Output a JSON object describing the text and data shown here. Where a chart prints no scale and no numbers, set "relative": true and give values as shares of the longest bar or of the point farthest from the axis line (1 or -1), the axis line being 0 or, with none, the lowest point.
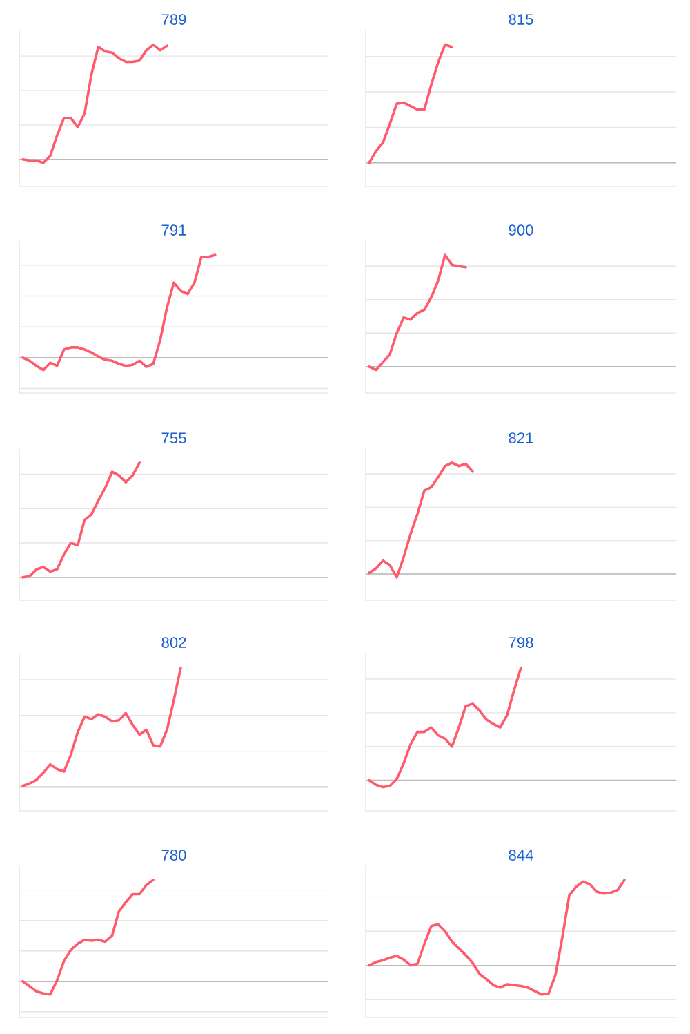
{
  "chart_data": [
    {
      "type": "line",
      "title": "789",
      "relative": true,
      "grid": "y",
      "marker": "none",
      "line_style": "solid",
      "categories": [
        null,
        null,
        null,
        null,
        null,
        null,
        null,
        null,
        null,
        null,
        null,
        null,
        null,
        null,
        null,
        null,
        null,
        null,
        null,
        null,
        null,
        null,
        null,
        null,
        null,
        null,
        null,
        null,
        null,
        null,
        null,
        null,
        null,
        null,
        null,
        null,
        null,
        null,
        null,
        null,
        null,
        null,
        null,
        null,
        null
      ],
      "series": [
        {
          "color": "#ff5a6e",
          "values": [
            0,
            -0.01,
            -0.01,
            -0.03,
            0.03,
            0.21,
            0.36,
            0.36,
            0.28,
            0.4,
            0.74,
            0.98,
            0.94,
            0.93,
            0.88,
            0.85,
            0.85,
            0.86,
            0.95,
            1.0,
            0.95,
            0.99,
            null,
            null,
            null,
            null,
            null,
            null,
            null,
            null,
            null,
            null,
            null,
            null,
            null,
            null,
            null,
            null,
            null,
            null,
            null,
            null,
            null,
            null,
            null
          ]
        }
      ]
    },
    {
      "type": "line",
      "title": "815",
      "relative": true,
      "grid": "y",
      "marker": "none",
      "line_style": "solid",
      "categories": [
        null,
        null,
        null,
        null,
        null,
        null,
        null,
        null,
        null,
        null,
        null,
        null,
        null,
        null,
        null,
        null,
        null,
        null,
        null,
        null,
        null,
        null,
        null,
        null,
        null,
        null,
        null,
        null,
        null,
        null,
        null,
        null,
        null,
        null,
        null,
        null,
        null,
        null,
        null,
        null,
        null,
        null,
        null,
        null,
        null
      ],
      "series": [
        {
          "color": "#ff5a6e",
          "values": [
            0,
            0.1,
            0.17,
            0.33,
            0.5,
            0.51,
            0.48,
            0.45,
            0.45,
            0.66,
            0.85,
            1.0,
            0.98,
            null,
            null,
            null,
            null,
            null,
            null,
            null,
            null,
            null,
            null,
            null,
            null,
            null,
            null,
            null,
            null,
            null,
            null,
            null,
            null,
            null,
            null,
            null,
            null,
            null,
            null,
            null,
            null,
            null,
            null,
            null,
            null
          ]
        }
      ]
    },
    {
      "type": "line",
      "title": "791",
      "relative": true,
      "grid": "y",
      "marker": "none",
      "line_style": "solid",
      "categories": [
        null,
        null,
        null,
        null,
        null,
        null,
        null,
        null,
        null,
        null,
        null,
        null,
        null,
        null,
        null,
        null,
        null,
        null,
        null,
        null,
        null,
        null,
        null,
        null,
        null,
        null,
        null,
        null,
        null,
        null,
        null,
        null,
        null,
        null,
        null,
        null,
        null,
        null,
        null,
        null,
        null,
        null,
        null,
        null,
        null
      ],
      "series": [
        {
          "color": "#ff5a6e",
          "values": [
            0,
            -0.03,
            -0.08,
            -0.12,
            -0.05,
            -0.08,
            0.08,
            0.1,
            0.1,
            0.08,
            0.05,
            0.01,
            -0.02,
            -0.03,
            -0.06,
            -0.08,
            -0.07,
            -0.03,
            -0.09,
            -0.06,
            0.17,
            0.49,
            0.73,
            0.65,
            0.62,
            0.73,
            0.98,
            0.98,
            1.0,
            null,
            null,
            null,
            null,
            null,
            null,
            null,
            null,
            null,
            null,
            null,
            null,
            null,
            null,
            null,
            null
          ]
        }
      ]
    },
    {
      "type": "line",
      "title": "900",
      "relative": true,
      "grid": "y",
      "marker": "none",
      "line_style": "solid",
      "categories": [
        null,
        null,
        null,
        null,
        null,
        null,
        null,
        null,
        null,
        null,
        null,
        null,
        null,
        null,
        null,
        null,
        null,
        null,
        null,
        null,
        null,
        null,
        null,
        null,
        null,
        null,
        null,
        null,
        null,
        null,
        null,
        null,
        null,
        null,
        null,
        null,
        null,
        null,
        null,
        null,
        null,
        null,
        null,
        null,
        null
      ],
      "series": [
        {
          "color": "#ff5a6e",
          "values": [
            0,
            -0.03,
            0.04,
            0.11,
            0.3,
            0.44,
            0.42,
            0.48,
            0.51,
            0.62,
            0.77,
            1.0,
            0.91,
            0.9,
            0.89,
            null,
            null,
            null,
            null,
            null,
            null,
            null,
            null,
            null,
            null,
            null,
            null,
            null,
            null,
            null,
            null,
            null,
            null,
            null,
            null,
            null,
            null,
            null,
            null,
            null,
            null,
            null,
            null,
            null,
            null
          ]
        }
      ]
    },
    {
      "type": "line",
      "title": "755",
      "relative": true,
      "grid": "y",
      "marker": "none",
      "line_style": "solid",
      "categories": [
        null,
        null,
        null,
        null,
        null,
        null,
        null,
        null,
        null,
        null,
        null,
        null,
        null,
        null,
        null,
        null,
        null,
        null,
        null,
        null,
        null,
        null,
        null,
        null,
        null,
        null,
        null,
        null,
        null,
        null,
        null,
        null,
        null,
        null,
        null,
        null,
        null,
        null,
        null,
        null,
        null,
        null,
        null,
        null,
        null
      ],
      "series": [
        {
          "color": "#ff5a6e",
          "values": [
            0,
            0.01,
            0.07,
            0.09,
            0.05,
            0.07,
            0.2,
            0.3,
            0.28,
            0.5,
            0.55,
            0.67,
            0.78,
            0.92,
            0.89,
            0.83,
            0.89,
            1.0,
            null,
            null,
            null,
            null,
            null,
            null,
            null,
            null,
            null,
            null,
            null,
            null,
            null,
            null,
            null,
            null,
            null,
            null,
            null,
            null,
            null,
            null,
            null,
            null,
            null,
            null,
            null
          ]
        }
      ]
    },
    {
      "type": "line",
      "title": "821",
      "relative": true,
      "grid": "y",
      "marker": "none",
      "line_style": "solid",
      "categories": [
        null,
        null,
        null,
        null,
        null,
        null,
        null,
        null,
        null,
        null,
        null,
        null,
        null,
        null,
        null,
        null,
        null,
        null,
        null,
        null,
        null,
        null,
        null,
        null,
        null,
        null,
        null,
        null,
        null,
        null,
        null,
        null,
        null,
        null,
        null,
        null,
        null,
        null,
        null,
        null,
        null,
        null,
        null,
        null,
        null
      ],
      "series": [
        {
          "color": "#ff5a6e",
          "values": [
            0.01,
            0.05,
            0.12,
            0.08,
            -0.03,
            0.15,
            0.36,
            0.54,
            0.75,
            0.78,
            0.87,
            0.97,
            1.0,
            0.97,
            0.99,
            0.92,
            null,
            null,
            null,
            null,
            null,
            null,
            null,
            null,
            null,
            null,
            null,
            null,
            null,
            null,
            null,
            null,
            null,
            null,
            null,
            null,
            null,
            null,
            null,
            null,
            null,
            null,
            null,
            null,
            null
          ]
        }
      ]
    },
    {
      "type": "line",
      "title": "802",
      "relative": true,
      "grid": "y",
      "marker": "none",
      "line_style": "solid",
      "categories": [
        null,
        null,
        null,
        null,
        null,
        null,
        null,
        null,
        null,
        null,
        null,
        null,
        null,
        null,
        null,
        null,
        null,
        null,
        null,
        null,
        null,
        null,
        null,
        null,
        null,
        null,
        null,
        null,
        null,
        null,
        null,
        null,
        null,
        null,
        null,
        null,
        null,
        null,
        null,
        null,
        null,
        null,
        null,
        null,
        null
      ],
      "series": [
        {
          "color": "#ff5a6e",
          "values": [
            0.01,
            0.03,
            0.06,
            0.12,
            0.19,
            0.15,
            0.13,
            0.27,
            0.46,
            0.59,
            0.57,
            0.61,
            0.59,
            0.55,
            0.56,
            0.62,
            0.52,
            0.44,
            0.48,
            0.35,
            0.34,
            0.48,
            0.73,
            1.0,
            null,
            null,
            null,
            null,
            null,
            null,
            null,
            null,
            null,
            null,
            null,
            null,
            null,
            null,
            null,
            null,
            null,
            null,
            null,
            null,
            null
          ]
        }
      ]
    },
    {
      "type": "line",
      "title": "798",
      "relative": true,
      "grid": "y",
      "marker": "none",
      "line_style": "solid",
      "categories": [
        null,
        null,
        null,
        null,
        null,
        null,
        null,
        null,
        null,
        null,
        null,
        null,
        null,
        null,
        null,
        null,
        null,
        null,
        null,
        null,
        null,
        null,
        null,
        null,
        null,
        null,
        null,
        null,
        null,
        null,
        null,
        null,
        null,
        null,
        null,
        null,
        null,
        null,
        null,
        null,
        null,
        null,
        null,
        null,
        null
      ],
      "series": [
        {
          "color": "#ff5a6e",
          "values": [
            0,
            -0.04,
            -0.06,
            -0.05,
            0.01,
            0.15,
            0.32,
            0.43,
            0.43,
            0.47,
            0.4,
            0.37,
            0.3,
            0.47,
            0.66,
            0.68,
            0.62,
            0.54,
            0.5,
            0.47,
            0.58,
            0.8,
            1.0,
            null,
            null,
            null,
            null,
            null,
            null,
            null,
            null,
            null,
            null,
            null,
            null,
            null,
            null,
            null,
            null,
            null,
            null,
            null,
            null,
            null,
            null
          ]
        }
      ]
    },
    {
      "type": "line",
      "title": "780",
      "relative": true,
      "grid": "y",
      "marker": "none",
      "line_style": "solid",
      "categories": [
        null,
        null,
        null,
        null,
        null,
        null,
        null,
        null,
        null,
        null,
        null,
        null,
        null,
        null,
        null,
        null,
        null,
        null,
        null,
        null,
        null,
        null,
        null,
        null,
        null,
        null,
        null,
        null,
        null,
        null,
        null,
        null,
        null,
        null,
        null,
        null,
        null,
        null,
        null,
        null,
        null,
        null,
        null,
        null,
        null
      ],
      "series": [
        {
          "color": "#ff5a6e",
          "values": [
            0,
            -0.05,
            -0.1,
            -0.12,
            -0.13,
            0.01,
            0.2,
            0.31,
            0.37,
            0.41,
            0.4,
            0.41,
            0.39,
            0.45,
            0.69,
            0.78,
            0.86,
            0.86,
            0.95,
            1.0,
            null,
            null,
            null,
            null,
            null,
            null,
            null,
            null,
            null,
            null,
            null,
            null,
            null,
            null,
            null,
            null,
            null,
            null,
            null,
            null,
            null,
            null,
            null,
            null,
            null
          ]
        }
      ]
    },
    {
      "type": "line",
      "title": "844",
      "relative": true,
      "grid": "y",
      "marker": "none",
      "line_style": "solid",
      "categories": [
        null,
        null,
        null,
        null,
        null,
        null,
        null,
        null,
        null,
        null,
        null,
        null,
        null,
        null,
        null,
        null,
        null,
        null,
        null,
        null,
        null,
        null,
        null,
        null,
        null,
        null,
        null,
        null,
        null,
        null,
        null,
        null,
        null,
        null,
        null,
        null,
        null,
        null,
        null,
        null,
        null,
        null,
        null,
        null,
        null
      ],
      "series": [
        {
          "color": "#ff5a6e",
          "values": [
            0,
            0.04,
            0.06,
            0.09,
            0.11,
            0.07,
            0,
            0.02,
            0.25,
            0.46,
            0.48,
            0.4,
            0.28,
            0.2,
            0.12,
            0.03,
            -0.1,
            -0.16,
            -0.23,
            -0.26,
            -0.22,
            -0.23,
            -0.24,
            -0.26,
            -0.3,
            -0.34,
            -0.33,
            -0.11,
            0.33,
            0.82,
            0.92,
            0.98,
            0.95,
            0.86,
            0.84,
            0.85,
            0.88,
            1.0,
            null,
            null,
            null,
            null,
            null,
            null,
            null
          ]
        }
      ]
    }
  ]
}
